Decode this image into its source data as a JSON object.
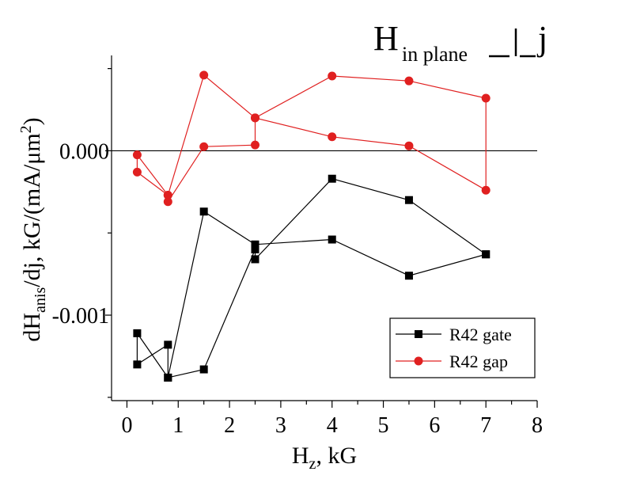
{
  "chart_data": {
    "type": "line",
    "title": "",
    "annotation": {
      "main": "H",
      "subscript": "in plane",
      "suffix": "j"
    },
    "xlabel": {
      "main": "H",
      "sub": "z",
      "rest": ", kG"
    },
    "ylabel": {
      "a": "dH",
      "sub": "anis",
      "b": "/dj, kG/(mA/μm",
      "sup": "2",
      "c": ")"
    },
    "xlim": [
      -0.3,
      8
    ],
    "ylim": [
      -0.00152,
      0.00058
    ],
    "xticks": [
      0,
      1,
      2,
      3,
      4,
      5,
      6,
      7,
      8
    ],
    "xtick_labels": [
      "0",
      "1",
      "2",
      "3",
      "4",
      "5",
      "6",
      "7",
      "8"
    ],
    "yticks": [
      0,
      -0.001
    ],
    "ytick_labels": [
      "0.000",
      "-0.001"
    ],
    "zero_line": true,
    "grid": false,
    "legend_position": "bottom-right",
    "series": [
      {
        "name": "R42 gate",
        "color": "#000000",
        "marker": "square",
        "x": [
          0.2,
          0.2,
          0.8,
          0.8,
          1.5,
          2.5,
          2.5,
          4.0,
          5.5,
          7.0,
          7.0,
          5.5,
          4.0,
          2.5,
          1.5,
          0.8,
          0.2
        ],
        "y": [
          -0.00111,
          -0.0013,
          -0.00118,
          -0.00138,
          -0.00133,
          -0.0006,
          -0.00066,
          -0.00017,
          -0.0003,
          -0.00063,
          -0.00063,
          -0.00076,
          -0.00054,
          -0.00057,
          -0.00037,
          -0.00138,
          -0.00111
        ]
      },
      {
        "name": "R42 gap",
        "color": "#e02020",
        "marker": "circle",
        "x": [
          0.2,
          0.2,
          0.8,
          0.8,
          1.5,
          2.5,
          2.5,
          4.0,
          5.5,
          7.0,
          7.0,
          5.5,
          4.0,
          2.5,
          1.5,
          0.8,
          0.2
        ],
        "y": [
          -2.5e-05,
          -0.00013,
          -0.00027,
          -0.00031,
          2.5e-05,
          3.5e-05,
          0.0002,
          0.000455,
          0.000425,
          0.00032,
          -0.00024,
          3e-05,
          8.5e-05,
          0.0002,
          0.00046,
          -0.00027,
          -2.5e-05
        ]
      }
    ]
  }
}
